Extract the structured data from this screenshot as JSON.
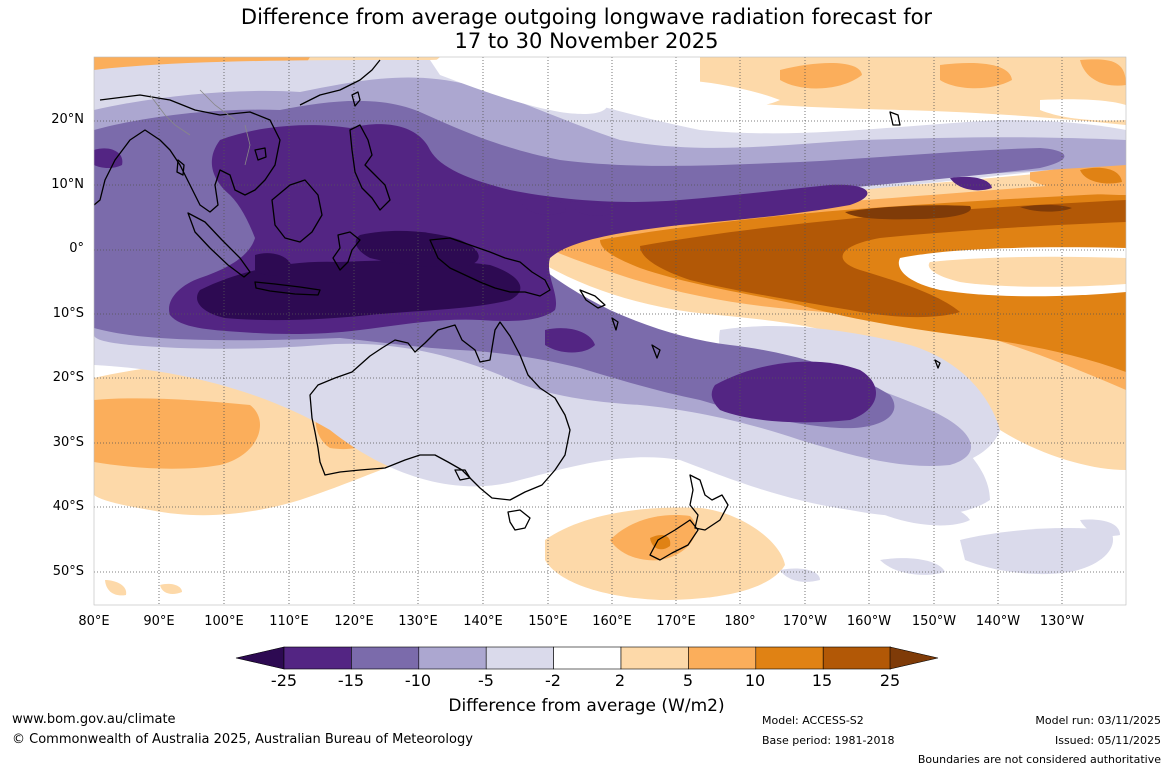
{
  "title": {
    "line1": "Difference from average outgoing longwave radiation forecast for",
    "line2": "17 to 30 November 2025"
  },
  "map": {
    "latitude_labels": [
      "20°N",
      "10°N",
      "0°",
      "10°S",
      "20°S",
      "30°S",
      "40°S",
      "50°S"
    ],
    "longitude_labels": [
      "80°E",
      "90°E",
      "100°E",
      "110°E",
      "120°E",
      "130°E",
      "140°E",
      "150°E",
      "160°E",
      "170°E",
      "180°",
      "170°W",
      "160°W",
      "150°W",
      "140°W",
      "130°W"
    ],
    "colors": {
      "land_outline": "#000000",
      "grid": "#555555",
      "ocean_background": "#ffffff"
    }
  },
  "colorbar": {
    "ticks": [
      "-25",
      "-15",
      "-10",
      "-5",
      "-2",
      "2",
      "5",
      "10",
      "15",
      "25"
    ],
    "colors": [
      "#2d0a52",
      "#532583",
      "#7b6bab",
      "#aca7d0",
      "#dadaeb",
      "#ffffff",
      "#fdd9a9",
      "#fbae5b",
      "#e08214",
      "#b25806",
      "#7f3b08"
    ],
    "title": "Difference from average (W/m2)"
  },
  "footer": {
    "website": "www.bom.gov.au/climate",
    "copyright": "© Commonwealth of Australia 2025, Australian Bureau of Meteorology",
    "model": "Model: ACCESS-S2",
    "base_period": "Base period: 1981-2018",
    "model_run": "Model run: 03/11/2025",
    "issued": "Issued: 05/11/2025",
    "disclaimer": "Boundaries are not considered authoritative"
  }
}
